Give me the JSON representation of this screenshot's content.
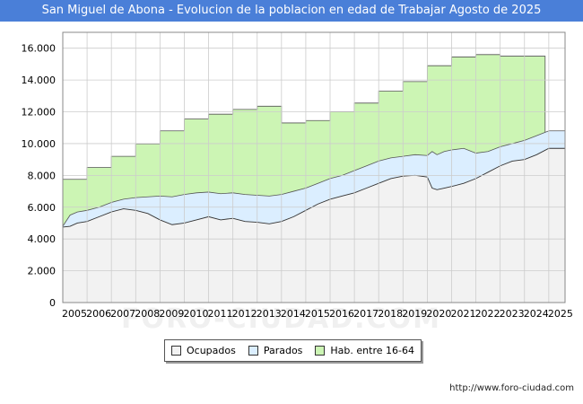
{
  "title": "San Miguel de Abona - Evolucion de la poblacion en edad de Trabajar Agosto de 2025",
  "source_url": "http://www.foro-ciudad.com",
  "watermark": "FORO-CIUDAD.COM",
  "colors": {
    "title_bg": "#4a7fd8",
    "ocupados": "#f2f2f2",
    "parados": "#dbeeff",
    "hab": "#ccf5b4"
  },
  "chart_data": {
    "type": "area",
    "title": "San Miguel de Abona - Evolucion de la poblacion en edad de Trabajar Agosto de 2025",
    "xlim": [
      2005,
      2025.67
    ],
    "ylim": [
      0,
      17000
    ],
    "y_ticks": [
      0,
      2000,
      4000,
      6000,
      8000,
      10000,
      12000,
      14000,
      16000
    ],
    "y_tick_labels": [
      "0",
      "2.000",
      "4.000",
      "6.000",
      "8.000",
      "10.000",
      "12.000",
      "14.000",
      "16.000"
    ],
    "x_ticks": [
      2005,
      2006,
      2007,
      2008,
      2009,
      2010,
      2011,
      2012,
      2013,
      2014,
      2015,
      2016,
      2017,
      2018,
      2019,
      2020,
      2021,
      2022,
      2023,
      2024,
      2025
    ],
    "grid": true,
    "legend": [
      "Ocupados",
      "Parados",
      "Hab. entre 16-64"
    ],
    "series": [
      {
        "name": "Hab. entre 16-64",
        "kind": "step",
        "x": [
          2005,
          2006,
          2007,
          2008,
          2009,
          2010,
          2011,
          2012,
          2013,
          2014,
          2015,
          2016,
          2017,
          2018,
          2019,
          2020,
          2021,
          2022,
          2023,
          2024
        ],
        "values": [
          7750,
          8500,
          9200,
          9980,
          10800,
          11550,
          11850,
          12150,
          12350,
          11300,
          11450,
          12000,
          12550,
          13300,
          13900,
          14900,
          15450,
          15600,
          15500,
          15500
        ]
      },
      {
        "name": "Parados",
        "kind": "line",
        "x": [
          2005,
          2005.3,
          2005.6,
          2006,
          2006.5,
          2007,
          2007.5,
          2008,
          2008.5,
          2009,
          2009.5,
          2010,
          2010.5,
          2011,
          2011.5,
          2012,
          2012.5,
          2013,
          2013.5,
          2014,
          2014.5,
          2015,
          2015.5,
          2016,
          2016.5,
          2017,
          2017.5,
          2018,
          2018.5,
          2019,
          2019.5,
          2020,
          2020.2,
          2020.4,
          2020.7,
          2021,
          2021.5,
          2022,
          2022.5,
          2023,
          2023.5,
          2024,
          2024.5,
          2025,
          2025.67
        ],
        "values": [
          4800,
          5500,
          5700,
          5800,
          6000,
          6300,
          6500,
          6600,
          6650,
          6700,
          6650,
          6800,
          6900,
          6950,
          6850,
          6900,
          6800,
          6750,
          6700,
          6800,
          7000,
          7200,
          7500,
          7800,
          8000,
          8300,
          8600,
          8900,
          9100,
          9200,
          9300,
          9250,
          9500,
          9300,
          9500,
          9600,
          9700,
          9400,
          9500,
          9800,
          10000,
          10200,
          10500,
          10800,
          10800
        ]
      },
      {
        "name": "Ocupados",
        "kind": "line",
        "x": [
          2005,
          2005.3,
          2005.6,
          2006,
          2006.5,
          2007,
          2007.5,
          2008,
          2008.5,
          2009,
          2009.5,
          2010,
          2010.5,
          2011,
          2011.5,
          2012,
          2012.5,
          2013,
          2013.5,
          2014,
          2014.5,
          2015,
          2015.5,
          2016,
          2016.5,
          2017,
          2017.5,
          2018,
          2018.5,
          2019,
          2019.5,
          2020,
          2020.2,
          2020.4,
          2020.7,
          2021,
          2021.5,
          2022,
          2022.5,
          2023,
          2023.5,
          2024,
          2024.5,
          2025,
          2025.67
        ],
        "values": [
          4750,
          4800,
          5000,
          5100,
          5400,
          5700,
          5900,
          5800,
          5600,
          5200,
          4900,
          5000,
          5200,
          5400,
          5200,
          5300,
          5100,
          5050,
          4950,
          5100,
          5400,
          5800,
          6200,
          6500,
          6700,
          6900,
          7200,
          7500,
          7800,
          7950,
          8000,
          7900,
          7200,
          7100,
          7200,
          7300,
          7500,
          7800,
          8200,
          8600,
          8900,
          9000,
          9300,
          9700,
          9700
        ]
      }
    ]
  }
}
